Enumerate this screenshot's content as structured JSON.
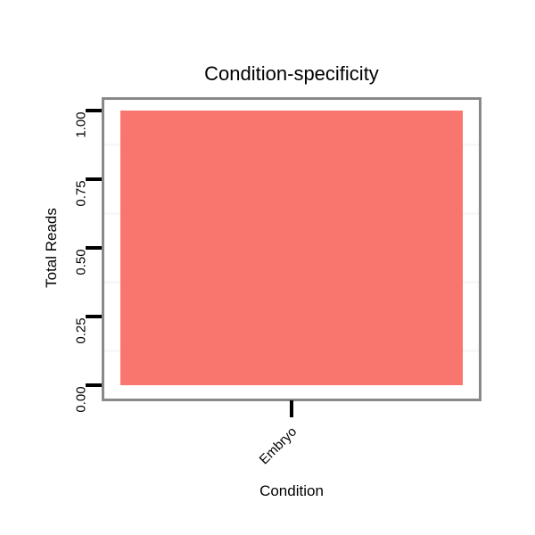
{
  "chart_data": {
    "type": "bar",
    "title": "Condition-specificity",
    "xlabel": "Condition",
    "ylabel": "Total Reads",
    "categories": [
      "Embryo"
    ],
    "values": [
      1.0
    ],
    "ylim": [
      0.0,
      1.0
    ],
    "y_ticks": [
      {
        "label": "0.00",
        "value": 0.0
      },
      {
        "label": "0.25",
        "value": 0.25
      },
      {
        "label": "0.50",
        "value": 0.5
      },
      {
        "label": "0.75",
        "value": 0.75
      },
      {
        "label": "1.00",
        "value": 1.0
      }
    ],
    "minor_gridline_values": [
      0.125,
      0.375,
      0.625,
      0.875
    ],
    "grid": "minor-only",
    "legend_position": "none",
    "colors": {
      "bar_fill": "#F8766D",
      "panel_border": "#898989",
      "minor_gridline": "#f8f8f8",
      "tick_mark": "#000000",
      "text": "#000000",
      "background": "#ffffff"
    }
  }
}
